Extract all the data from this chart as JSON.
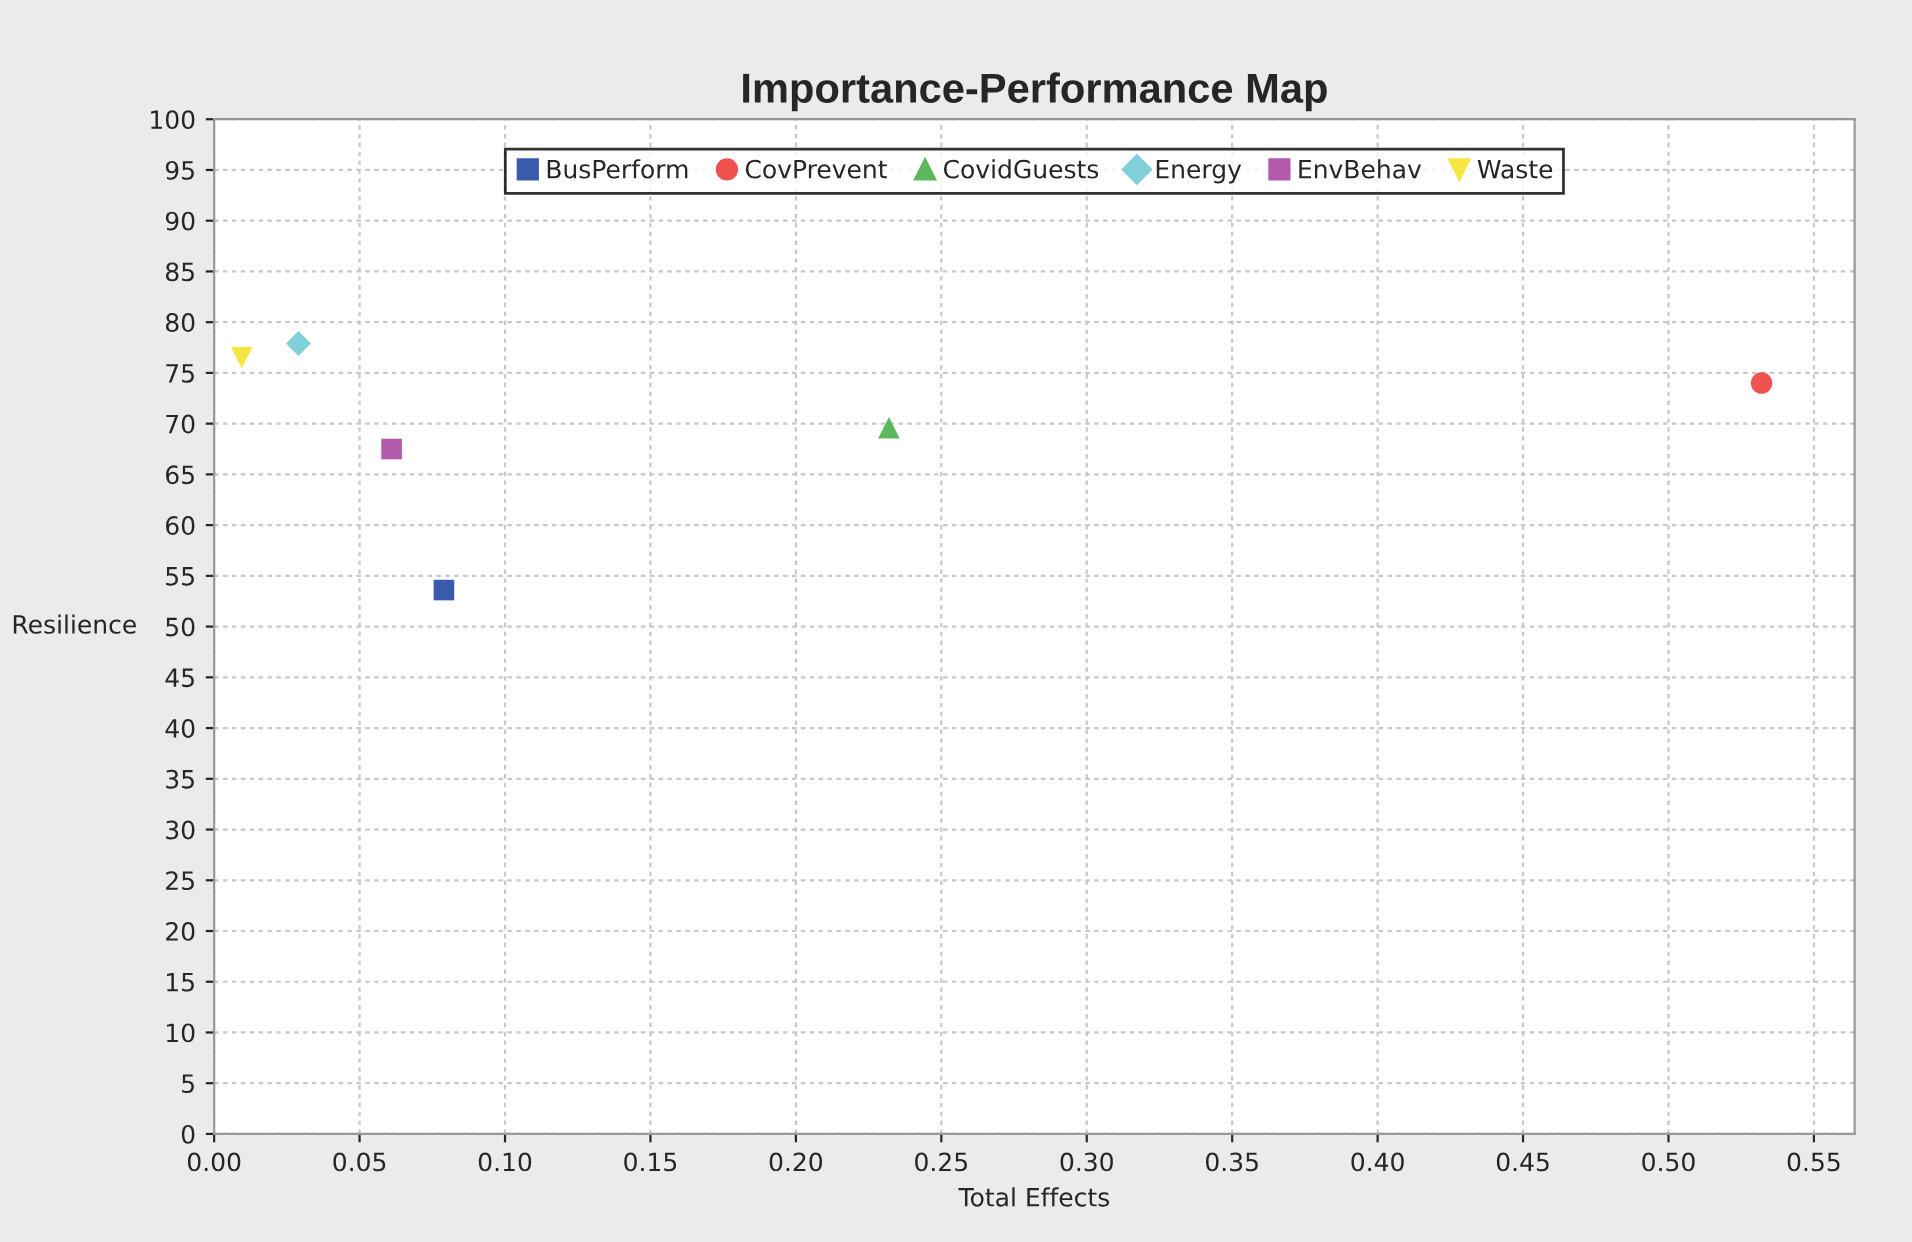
{
  "chart_data": {
    "type": "scatter",
    "title": "Importance-Performance Map",
    "xlabel": "Total Effects",
    "ylabel": "Resilience",
    "xlim": [
      0,
      0.564
    ],
    "ylim": [
      0,
      100
    ],
    "xticks": [
      {
        "value": 0,
        "label": "0.00"
      },
      {
        "value": 0.05,
        "label": "0.05"
      },
      {
        "value": 0.1,
        "label": "0.10"
      },
      {
        "value": 0.15,
        "label": "0.15"
      },
      {
        "value": 0.2,
        "label": "0.20"
      },
      {
        "value": 0.25,
        "label": "0.25"
      },
      {
        "value": 0.3,
        "label": "0.30"
      },
      {
        "value": 0.35,
        "label": "0.35"
      },
      {
        "value": 0.4,
        "label": "0.40"
      },
      {
        "value": 0.45,
        "label": "0.45"
      },
      {
        "value": 0.5,
        "label": "0.50"
      },
      {
        "value": 0.55,
        "label": "0.55"
      }
    ],
    "yticks": [
      0,
      5,
      10,
      15,
      20,
      25,
      30,
      35,
      40,
      45,
      50,
      55,
      60,
      65,
      70,
      75,
      80,
      85,
      90,
      95,
      100
    ],
    "grid": true,
    "legend": "top",
    "series": [
      {
        "name": "BusPerform",
        "color": "#3a5bab",
        "marker": "square",
        "x": [
          0.079
        ],
        "values": [
          53.6
        ]
      },
      {
        "name": "CovPrevent",
        "color": "#f0524f",
        "marker": "circle",
        "x": [
          0.532
        ],
        "values": [
          74.0
        ]
      },
      {
        "name": "CovidGuests",
        "color": "#5cb85c",
        "marker": "triangle",
        "x": [
          0.232
        ],
        "values": [
          69.6
        ]
      },
      {
        "name": "Energy",
        "color": "#7fd0d8",
        "marker": "diamond",
        "x": [
          0.029
        ],
        "values": [
          77.9
        ]
      },
      {
        "name": "EnvBehav",
        "color": "#b35bab",
        "marker": "square",
        "x": [
          0.061
        ],
        "values": [
          67.5
        ]
      },
      {
        "name": "Waste",
        "color": "#f5e642",
        "marker": "triangle_down",
        "x": [
          0.0095
        ],
        "values": [
          76.5
        ]
      }
    ]
  }
}
